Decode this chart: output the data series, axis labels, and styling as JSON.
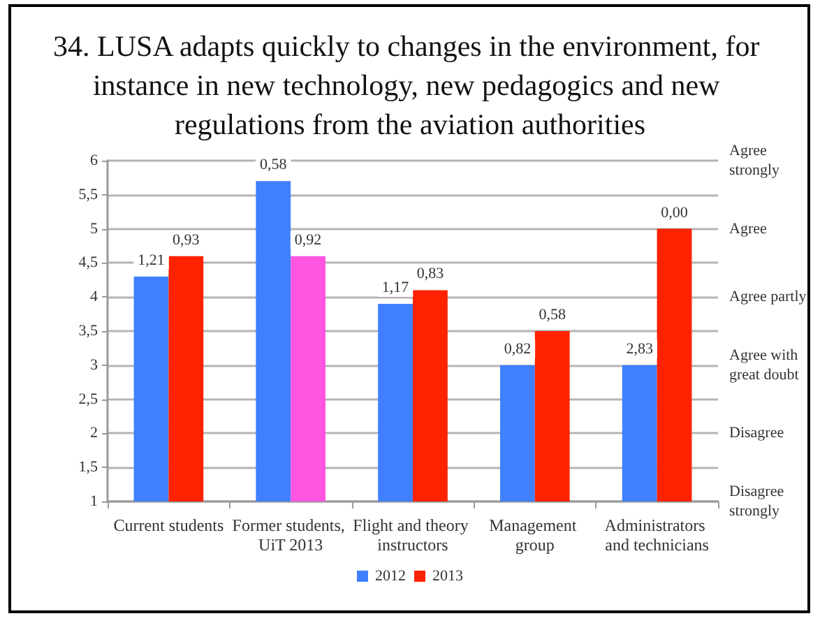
{
  "chart_data": {
    "type": "bar",
    "title": "34. LUSA adapts quickly to changes in the environment, for instance in new technology, new pedagogics and new regulations from the aviation authorities",
    "categories": [
      "Current students",
      "Former students, UiT 2013",
      "Flight and theory instructors",
      "Management group",
      "Administrators and technicians"
    ],
    "series": [
      {
        "name": "2012",
        "color": "#4080ff",
        "values": [
          4.3,
          5.7,
          3.9,
          3.0,
          3.0
        ]
      },
      {
        "name": "2013",
        "color": "#ff2200",
        "colors": [
          "#ff2200",
          "#ff55e0",
          "#ff2200",
          "#ff2200",
          "#ff2200"
        ],
        "values": [
          4.6,
          4.6,
          4.1,
          3.5,
          5.0
        ]
      }
    ],
    "annotations": [
      {
        "text": "1,21",
        "x": "Current students",
        "y": 4.3
      },
      {
        "text": "0,93",
        "x": "Current students",
        "y": 4.6
      },
      {
        "text": "0,58",
        "x": "Former students, UiT 2013",
        "y": 5.7
      },
      {
        "text": "0,92",
        "x": "Former students, UiT 2013",
        "y": 4.6
      },
      {
        "text": "1,17",
        "x": "Flight and theory instructors",
        "y": 3.9
      },
      {
        "text": "0,83",
        "x": "Flight and theory instructors",
        "y": 4.1
      },
      {
        "text": "0,82",
        "x": "Management group",
        "y": 3.0
      },
      {
        "text": "0,58",
        "x": "Management group",
        "y": 3.5
      },
      {
        "text": "2,83",
        "x": "Administrators and technicians",
        "y": 3.0
      },
      {
        "text": "0,00",
        "x": "Administrators and technicians",
        "y": 5.0
      }
    ],
    "ylim": [
      1,
      6
    ],
    "yticks": [
      1,
      {
        "value": 1.5,
        "label": "1,5"
      },
      2,
      {
        "value": 2.5,
        "label": "2,5"
      },
      3,
      {
        "value": 3.5,
        "label": "3,5"
      },
      4,
      {
        "value": 4.5,
        "label": "4,5"
      },
      5,
      {
        "value": 5.5,
        "label": "5,5"
      },
      6
    ],
    "y2_categories": [
      "Agree strongly",
      "Agree",
      "Agree partly",
      "Agree with great doubt",
      "Disagree",
      "Disagree strongly"
    ],
    "grid": "y",
    "legend": "bottom"
  }
}
